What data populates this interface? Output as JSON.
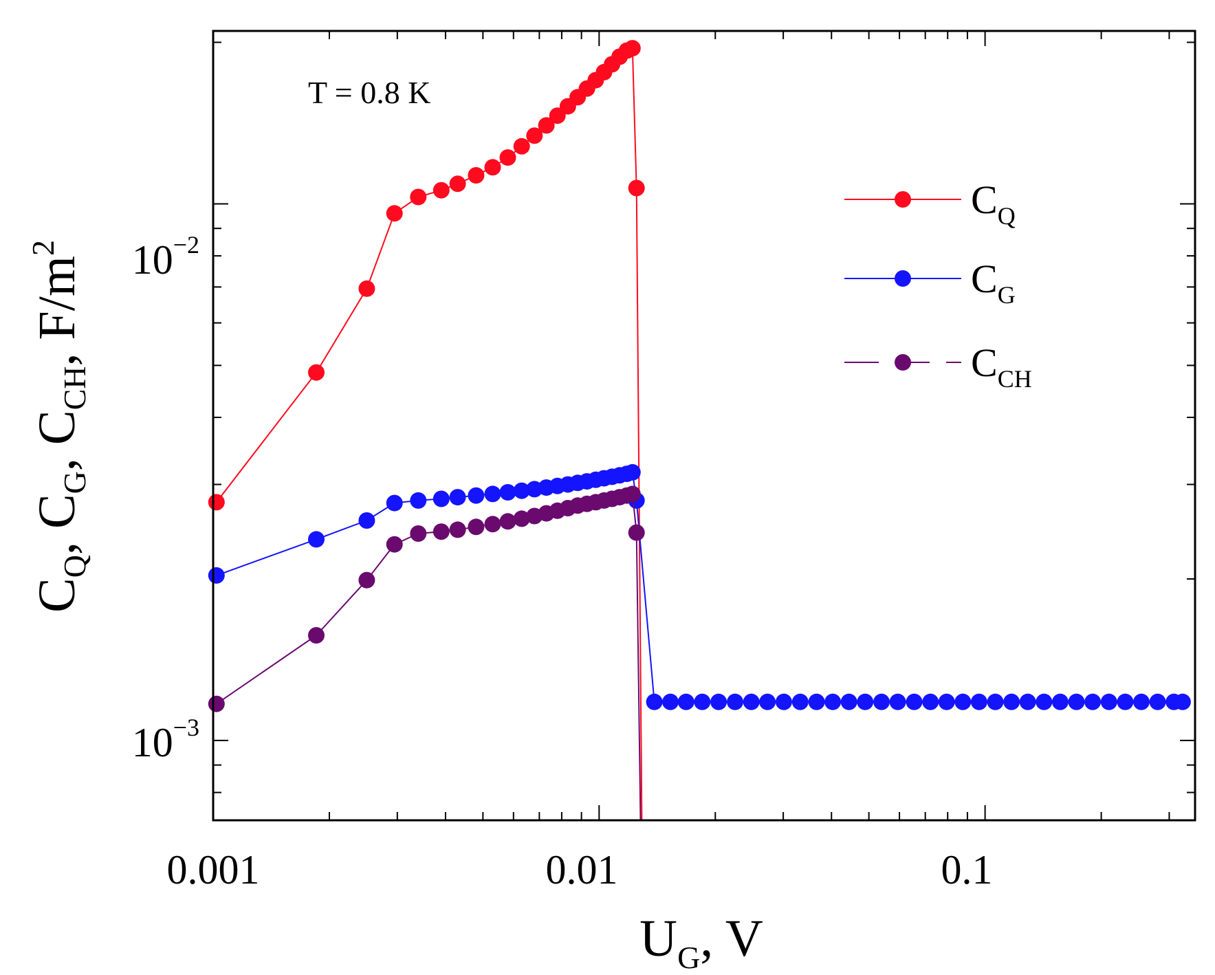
{
  "chart_data": {
    "type": "line",
    "xscale": "log",
    "yscale": "log",
    "xlim": [
      0.001,
      0.35
    ],
    "ylim": [
      0.00071,
      0.021
    ],
    "x_ticks": [
      "0.001",
      "0.01",
      "0.1"
    ],
    "y_ticks": [
      {
        "base": "10",
        "exp": "−2"
      },
      {
        "base": "10",
        "exp": "−3"
      }
    ],
    "xlabel": {
      "main": "U",
      "sub": "G",
      "rest": ", V"
    },
    "ylabel": {
      "parts": [
        {
          "main": "C",
          "sub": "Q"
        },
        {
          "text": ", "
        },
        {
          "main": "C",
          "sub": "G"
        },
        {
          "text": ", "
        },
        {
          "main": "C",
          "sub": "CH"
        },
        {
          "text": ", F/m"
        },
        {
          "sup": "2"
        }
      ]
    },
    "annotation": "T = 0.8 K",
    "legend": {
      "position": "top-right",
      "entries": [
        {
          "main": "C",
          "sub": "Q"
        },
        {
          "main": "C",
          "sub": "G"
        },
        {
          "main": "C",
          "sub": "CH"
        }
      ]
    },
    "series": [
      {
        "name": "C_Q",
        "color": "#ff0a1e",
        "x": [
          0.00102,
          0.00185,
          0.0025,
          0.00295,
          0.0034,
          0.0039,
          0.0043,
          0.0048,
          0.0053,
          0.0058,
          0.0063,
          0.0068,
          0.0073,
          0.0078,
          0.0083,
          0.0088,
          0.0093,
          0.0098,
          0.0103,
          0.0108,
          0.0113,
          0.0118,
          0.0122,
          0.0125
        ],
        "y": [
          0.00278,
          0.00485,
          0.00695,
          0.0096,
          0.0103,
          0.0106,
          0.0109,
          0.0113,
          0.0117,
          0.0122,
          0.0128,
          0.0134,
          0.014,
          0.0146,
          0.0152,
          0.0158,
          0.0164,
          0.017,
          0.0176,
          0.0182,
          0.0188,
          0.0193,
          0.0195,
          0.0107
        ],
        "tail": {
          "x": 0.0129,
          "y": 0.00071
        }
      },
      {
        "name": "C_G",
        "color": "#1414ff",
        "x": [
          0.00102,
          0.00185,
          0.0025,
          0.00295,
          0.0034,
          0.0039,
          0.0043,
          0.0048,
          0.0053,
          0.0058,
          0.0063,
          0.0068,
          0.0073,
          0.0078,
          0.0083,
          0.0088,
          0.0093,
          0.0098,
          0.0103,
          0.0108,
          0.0113,
          0.0118,
          0.0122,
          0.0125,
          0.0139,
          0.0153,
          0.0168,
          0.0185,
          0.0204,
          0.0225,
          0.0248,
          0.0273,
          0.0301,
          0.0332,
          0.0366,
          0.0403,
          0.0444,
          0.0489,
          0.0539,
          0.0594,
          0.0655,
          0.0722,
          0.0795,
          0.0876,
          0.0965,
          0.1063,
          0.1171,
          0.129,
          0.1421,
          0.1566,
          0.1725,
          0.19,
          0.2094,
          0.2307,
          0.2541,
          0.28,
          0.3084,
          0.325
        ],
        "y": [
          0.00203,
          0.00237,
          0.00257,
          0.00277,
          0.0028,
          0.00282,
          0.00284,
          0.00286,
          0.00288,
          0.0029,
          0.00292,
          0.00294,
          0.00296,
          0.00298,
          0.003,
          0.00302,
          0.00304,
          0.00306,
          0.00308,
          0.0031,
          0.00312,
          0.00314,
          0.00316,
          0.0028,
          0.00118,
          0.00118,
          0.00118,
          0.00118,
          0.00118,
          0.00118,
          0.00118,
          0.00118,
          0.00118,
          0.00118,
          0.00118,
          0.00118,
          0.00118,
          0.00118,
          0.00118,
          0.00118,
          0.00118,
          0.00118,
          0.00118,
          0.00118,
          0.00118,
          0.00118,
          0.00118,
          0.00118,
          0.00118,
          0.00118,
          0.00118,
          0.00118,
          0.00118,
          0.00118,
          0.00118,
          0.00118,
          0.00118,
          0.00118
        ]
      },
      {
        "name": "C_CH",
        "color": "#6a0a6e",
        "x": [
          0.00102,
          0.00185,
          0.0025,
          0.00295,
          0.0034,
          0.0039,
          0.0043,
          0.0048,
          0.0053,
          0.0058,
          0.0063,
          0.0068,
          0.0073,
          0.0078,
          0.0083,
          0.0088,
          0.0093,
          0.0098,
          0.0103,
          0.0108,
          0.0113,
          0.0118,
          0.0122,
          0.0125
        ],
        "y": [
          0.00117,
          0.00157,
          0.00199,
          0.00232,
          0.00243,
          0.00245,
          0.00247,
          0.0025,
          0.00253,
          0.00256,
          0.00259,
          0.00262,
          0.00265,
          0.00268,
          0.00271,
          0.00274,
          0.00276,
          0.00278,
          0.0028,
          0.00282,
          0.00284,
          0.00286,
          0.00288,
          0.00244
        ],
        "tail": {
          "x": 0.0128,
          "y": 0.00071
        }
      }
    ]
  }
}
